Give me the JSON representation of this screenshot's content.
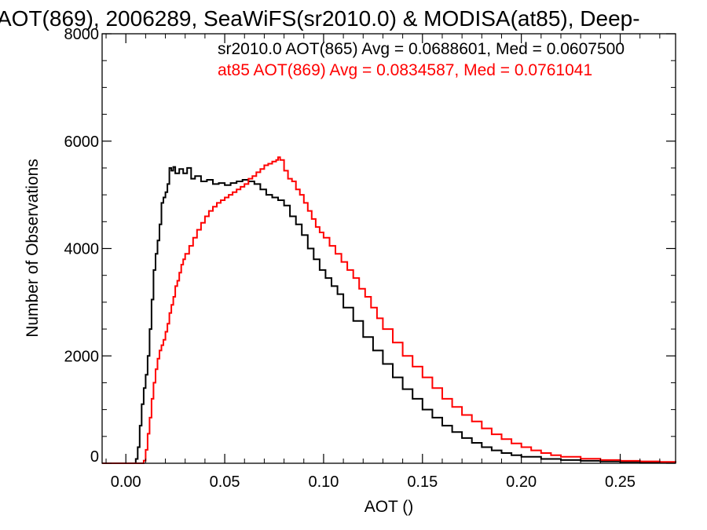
{
  "chart_data": {
    "type": "line",
    "title": "AOT(869), 2006289, SeaWiFS(sr2010.0) & MODISA(at85), Deep-",
    "xlabel": "AOT ()",
    "ylabel": "Number of Observations",
    "xlim": [
      -0.012,
      0.278
    ],
    "ylim": [
      0,
      8000
    ],
    "x_ticks": [
      0.0,
      0.05,
      0.1,
      0.15,
      0.2,
      0.25
    ],
    "x_tick_labels": [
      "0.00",
      "0.05",
      "0.10",
      "0.15",
      "0.20",
      "0.25"
    ],
    "y_ticks": [
      0,
      2000,
      4000,
      6000,
      8000
    ],
    "y_tick_labels": [
      "0",
      "2000",
      "4000",
      "6000",
      "8000"
    ],
    "grid": false,
    "legend_position": "top-right",
    "series": [
      {
        "name": "sr2010.0 AOT(865) Avg = 0.0688601, Med = 0.0607500",
        "color": "#000000",
        "points": [
          [
            -0.012,
            0
          ],
          [
            0.0,
            0
          ],
          [
            0.002,
            0
          ],
          [
            0.004,
            0
          ],
          [
            0.005,
            80
          ],
          [
            0.006,
            300
          ],
          [
            0.007,
            700
          ],
          [
            0.008,
            1100
          ],
          [
            0.009,
            1400
          ],
          [
            0.01,
            1650
          ],
          [
            0.011,
            2000
          ],
          [
            0.012,
            2500
          ],
          [
            0.013,
            3050
          ],
          [
            0.014,
            3600
          ],
          [
            0.015,
            3900
          ],
          [
            0.016,
            4150
          ],
          [
            0.017,
            4450
          ],
          [
            0.018,
            4850
          ],
          [
            0.019,
            4950
          ],
          [
            0.02,
            5050
          ],
          [
            0.021,
            5200
          ],
          [
            0.022,
            5500
          ],
          [
            0.023,
            5450
          ],
          [
            0.024,
            5520
          ],
          [
            0.025,
            5400
          ],
          [
            0.027,
            5480
          ],
          [
            0.029,
            5400
          ],
          [
            0.031,
            5500
          ],
          [
            0.033,
            5300
          ],
          [
            0.035,
            5350
          ],
          [
            0.038,
            5250
          ],
          [
            0.041,
            5280
          ],
          [
            0.044,
            5200
          ],
          [
            0.047,
            5220
          ],
          [
            0.05,
            5180
          ],
          [
            0.053,
            5220
          ],
          [
            0.056,
            5250
          ],
          [
            0.059,
            5280
          ],
          [
            0.062,
            5250
          ],
          [
            0.065,
            5200
          ],
          [
            0.068,
            5100
          ],
          [
            0.071,
            5000
          ],
          [
            0.074,
            4950
          ],
          [
            0.077,
            4900
          ],
          [
            0.08,
            4800
          ],
          [
            0.083,
            4600
          ],
          [
            0.086,
            4450
          ],
          [
            0.089,
            4250
          ],
          [
            0.092,
            4000
          ],
          [
            0.095,
            3800
          ],
          [
            0.098,
            3600
          ],
          [
            0.101,
            3450
          ],
          [
            0.104,
            3300
          ],
          [
            0.107,
            3150
          ],
          [
            0.11,
            2900
          ],
          [
            0.115,
            2650
          ],
          [
            0.12,
            2350
          ],
          [
            0.125,
            2100
          ],
          [
            0.13,
            1850
          ],
          [
            0.135,
            1600
          ],
          [
            0.14,
            1380
          ],
          [
            0.145,
            1200
          ],
          [
            0.15,
            1000
          ],
          [
            0.155,
            850
          ],
          [
            0.16,
            700
          ],
          [
            0.165,
            580
          ],
          [
            0.17,
            470
          ],
          [
            0.175,
            380
          ],
          [
            0.18,
            300
          ],
          [
            0.185,
            240
          ],
          [
            0.19,
            190
          ],
          [
            0.195,
            150
          ],
          [
            0.2,
            120
          ],
          [
            0.21,
            80
          ],
          [
            0.22,
            60
          ],
          [
            0.23,
            45
          ],
          [
            0.24,
            35
          ],
          [
            0.25,
            25
          ],
          [
            0.26,
            20
          ],
          [
            0.27,
            15
          ],
          [
            0.278,
            10
          ]
        ]
      },
      {
        "name": "at85 AOT(869) Avg = 0.0834587, Med = 0.0761041",
        "color": "#ff0000",
        "points": [
          [
            -0.012,
            0
          ],
          [
            0.005,
            0
          ],
          [
            0.008,
            0
          ],
          [
            0.009,
            50
          ],
          [
            0.01,
            250
          ],
          [
            0.011,
            550
          ],
          [
            0.012,
            850
          ],
          [
            0.013,
            1200
          ],
          [
            0.014,
            1500
          ],
          [
            0.015,
            1750
          ],
          [
            0.016,
            1950
          ],
          [
            0.017,
            2100
          ],
          [
            0.018,
            2200
          ],
          [
            0.019,
            2300
          ],
          [
            0.02,
            2450
          ],
          [
            0.021,
            2600
          ],
          [
            0.022,
            2800
          ],
          [
            0.023,
            2950
          ],
          [
            0.024,
            3100
          ],
          [
            0.025,
            3300
          ],
          [
            0.026,
            3400
          ],
          [
            0.027,
            3550
          ],
          [
            0.028,
            3700
          ],
          [
            0.029,
            3800
          ],
          [
            0.03,
            3900
          ],
          [
            0.032,
            4050
          ],
          [
            0.034,
            4200
          ],
          [
            0.036,
            4350
          ],
          [
            0.038,
            4480
          ],
          [
            0.04,
            4600
          ],
          [
            0.042,
            4700
          ],
          [
            0.044,
            4780
          ],
          [
            0.046,
            4850
          ],
          [
            0.048,
            4900
          ],
          [
            0.05,
            4950
          ],
          [
            0.052,
            5000
          ],
          [
            0.054,
            5050
          ],
          [
            0.056,
            5100
          ],
          [
            0.058,
            5150
          ],
          [
            0.06,
            5200
          ],
          [
            0.062,
            5300
          ],
          [
            0.064,
            5350
          ],
          [
            0.066,
            5420
          ],
          [
            0.068,
            5480
          ],
          [
            0.07,
            5550
          ],
          [
            0.072,
            5580
          ],
          [
            0.074,
            5620
          ],
          [
            0.076,
            5650
          ],
          [
            0.077,
            5700
          ],
          [
            0.078,
            5650
          ],
          [
            0.08,
            5450
          ],
          [
            0.082,
            5300
          ],
          [
            0.084,
            5250
          ],
          [
            0.086,
            5100
          ],
          [
            0.088,
            5000
          ],
          [
            0.09,
            4850
          ],
          [
            0.092,
            4700
          ],
          [
            0.094,
            4550
          ],
          [
            0.096,
            4400
          ],
          [
            0.098,
            4300
          ],
          [
            0.1,
            4200
          ],
          [
            0.103,
            4050
          ],
          [
            0.106,
            3900
          ],
          [
            0.109,
            3750
          ],
          [
            0.112,
            3600
          ],
          [
            0.115,
            3450
          ],
          [
            0.118,
            3250
          ],
          [
            0.121,
            3100
          ],
          [
            0.124,
            2900
          ],
          [
            0.127,
            2700
          ],
          [
            0.13,
            2500
          ],
          [
            0.135,
            2250
          ],
          [
            0.14,
            2000
          ],
          [
            0.145,
            1800
          ],
          [
            0.15,
            1600
          ],
          [
            0.155,
            1400
          ],
          [
            0.16,
            1200
          ],
          [
            0.165,
            1050
          ],
          [
            0.17,
            900
          ],
          [
            0.175,
            780
          ],
          [
            0.18,
            650
          ],
          [
            0.185,
            540
          ],
          [
            0.19,
            450
          ],
          [
            0.195,
            370
          ],
          [
            0.2,
            300
          ],
          [
            0.205,
            240
          ],
          [
            0.21,
            190
          ],
          [
            0.215,
            150
          ],
          [
            0.22,
            120
          ],
          [
            0.23,
            85
          ],
          [
            0.24,
            60
          ],
          [
            0.25,
            45
          ],
          [
            0.26,
            35
          ],
          [
            0.27,
            25
          ],
          [
            0.278,
            20
          ]
        ]
      }
    ]
  }
}
